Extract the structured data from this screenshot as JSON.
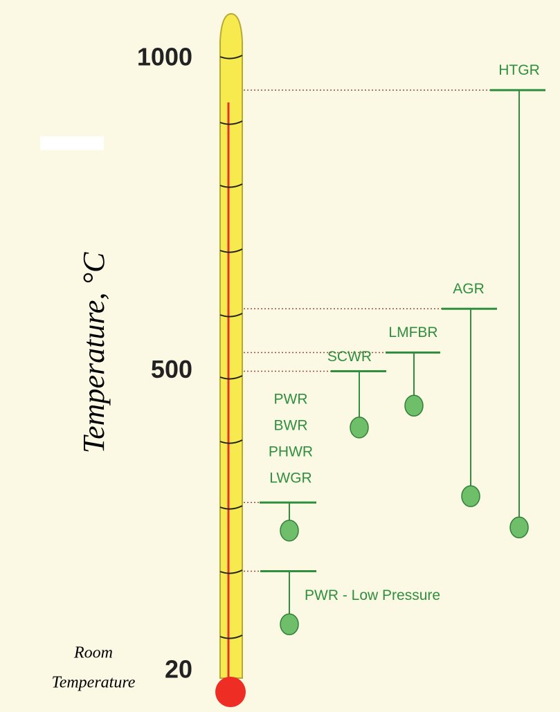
{
  "axis": {
    "label": "Temperature, °C",
    "ticks": [
      20,
      500,
      1000
    ],
    "note": [
      "Room",
      "Temperature"
    ]
  },
  "reactors": [
    {
      "names": [
        "HTGR"
      ],
      "outlet": 950,
      "inlet": 250
    },
    {
      "names": [
        "AGR"
      ],
      "outlet": 600,
      "inlet": 300
    },
    {
      "names": [
        "LMFBR"
      ],
      "outlet": 530,
      "inlet": 445
    },
    {
      "names": [
        "SCWR"
      ],
      "outlet": 500,
      "inlet": 410
    },
    {
      "names": [
        "PWR",
        "BWR",
        "PHWR",
        "LWGR"
      ],
      "outlet": 290,
      "inlet": 245
    },
    {
      "names": [
        "PWR - Low Pressure"
      ],
      "outlet": 180,
      "inlet": 95
    }
  ]
}
